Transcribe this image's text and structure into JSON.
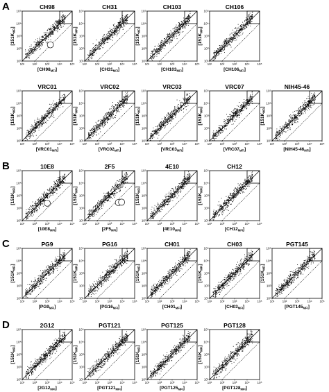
{
  "chart_data": {
    "type": "scatter",
    "x_scale": "log",
    "y_scale": "log",
    "xlim": [
      10,
      100000
    ],
    "ylim": [
      10,
      100000
    ],
    "tick_labels": [
      "10¹",
      "10²",
      "10³",
      "10⁴",
      "10⁵"
    ],
    "tick_values": [
      10,
      100,
      1000,
      10000,
      100000
    ],
    "reference_lines": [
      "diagonal y = x",
      "dotted 10-fold offset line"
    ],
    "colors": {
      "points": "#000000",
      "frame": "#000000"
    },
    "panels": [
      {
        "group": "A",
        "title": "CH98",
        "xlabel": "[CH98",
        "xsub": "MFI",
        "xclose": "]",
        "ylabel": "[151K",
        "ysub": "MFI",
        "yclose": "]",
        "circles": [
          [
            1800,
            200
          ]
        ]
      },
      {
        "group": "A",
        "title": "CH31",
        "xlabel": "[CH31",
        "xsub": "MFI",
        "xclose": "]",
        "ylabel": "[151K",
        "ysub": "MFI",
        "yclose": "]"
      },
      {
        "group": "A",
        "title": "CH103",
        "xlabel": "[CH103",
        "xsub": "MFI",
        "xclose": "]",
        "ylabel": "[151K",
        "ysub": "MFI",
        "yclose": "]"
      },
      {
        "group": "A",
        "title": "CH106",
        "xlabel": "[CH106",
        "xsub": "MFI",
        "xclose": "]",
        "ylabel": "[151K",
        "ysub": "MFI",
        "yclose": "]"
      },
      {
        "group": "A",
        "title": "VRC01",
        "xlabel": "[VRC01",
        "xsub": "MFI",
        "xclose": "]",
        "ylabel": "[151K",
        "ysub": "MFI",
        "yclose": "]"
      },
      {
        "group": "A",
        "title": "VRC02",
        "xlabel": "[VRC02",
        "xsub": "MFI",
        "xclose": "]",
        "ylabel": "[151K",
        "ysub": "MFI",
        "yclose": "]"
      },
      {
        "group": "A",
        "title": "VRC03",
        "xlabel": "[VRC03",
        "xsub": "MFI",
        "xclose": "]",
        "ylabel": "[151K",
        "ysub": "MFI",
        "yclose": "]"
      },
      {
        "group": "A",
        "title": "VRC07",
        "xlabel": "[VRC07",
        "xsub": "MFI",
        "xclose": "]",
        "ylabel": "[151K",
        "ysub": "MFI",
        "yclose": "]"
      },
      {
        "group": "A",
        "title": "NIH45-46",
        "xlabel": "[NIH45-46",
        "xsub": "MFI",
        "xclose": "]",
        "ylabel": "[151K",
        "ysub": "MFI",
        "yclose": "]"
      },
      {
        "group": "B",
        "title": "10E8",
        "xlabel": "[10E8",
        "xsub": "MFI",
        "xclose": "]",
        "ylabel": "[151K",
        "ysub": "MFI",
        "yclose": "]",
        "circles": [
          [
            1000,
            250
          ]
        ]
      },
      {
        "group": "B",
        "title": "2F5",
        "xlabel": "[2F5",
        "xsub": "MFI",
        "xclose": "]",
        "ylabel": "[151K",
        "ysub": "MFI",
        "yclose": "]",
        "circles": [
          [
            5000,
            280
          ],
          [
            9000,
            300
          ]
        ]
      },
      {
        "group": "B",
        "title": "4E10",
        "xlabel": "[4E10",
        "xsub": "MFI",
        "xclose": "]",
        "ylabel": "[151K",
        "ysub": "MFI",
        "yclose": "]"
      },
      {
        "group": "B",
        "title": "CH12",
        "xlabel": "[CH12",
        "xsub": "MFI",
        "xclose": "]",
        "ylabel": "[151K",
        "ysub": "MFI",
        "yclose": "]"
      },
      {
        "group": "C",
        "title": "PG9",
        "xlabel": "[PG9",
        "xsub": "MFI",
        "xclose": "]",
        "ylabel": "[151K",
        "ysub": "MFI",
        "yclose": "]"
      },
      {
        "group": "C",
        "title": "PG16",
        "xlabel": "[PG16",
        "xsub": "MFI",
        "xclose": "]",
        "ylabel": "[151K",
        "ysub": "MFI",
        "yclose": "]"
      },
      {
        "group": "C",
        "title": "CH01",
        "xlabel": "[CH01",
        "xsub": "MFI",
        "xclose": "]",
        "ylabel": "[151K",
        "ysub": "MFI",
        "yclose": "]"
      },
      {
        "group": "C",
        "title": "CH03",
        "xlabel": "[CH03",
        "xsub": "MFI",
        "xclose": "]",
        "ylabel": "[151K",
        "ysub": "MFI",
        "yclose": "]"
      },
      {
        "group": "C",
        "title": "PGT145",
        "xlabel": "[PGT145",
        "xsub": "MFI",
        "xclose": "]",
        "ylabel": "[151K",
        "ysub": "MFI",
        "yclose": "]"
      },
      {
        "group": "D",
        "title": "2G12",
        "xlabel": "[2G12",
        "xsub": "MFI",
        "xclose": "]",
        "ylabel": "[151K",
        "ysub": "MFI",
        "yclose": "]"
      },
      {
        "group": "D",
        "title": "PGT121",
        "xlabel": "[PGT121",
        "xsub": "MFI",
        "xclose": "]",
        "ylabel": "[151K",
        "ysub": "MFI",
        "yclose": "]"
      },
      {
        "group": "D",
        "title": "PGT125",
        "xlabel": "[PGT125",
        "xsub": "MFI",
        "xclose": "]",
        "ylabel": "[151K",
        "ysub": "MFI",
        "yclose": "]"
      },
      {
        "group": "D",
        "title": "PGT128",
        "xlabel": "[PGT128",
        "xsub": "MFI",
        "xclose": "]",
        "ylabel": "[151K",
        "ysub": "MFI",
        "yclose": "]"
      }
    ]
  },
  "group_labels": [
    "A",
    "B",
    "C",
    "D"
  ]
}
